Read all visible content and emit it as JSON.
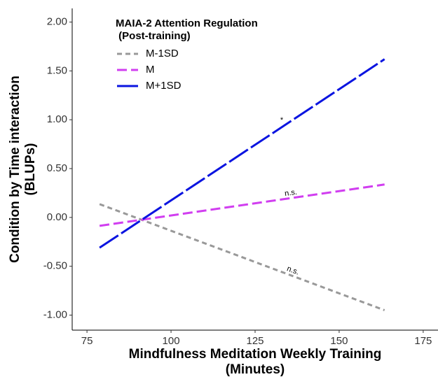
{
  "chart_data": {
    "type": "line",
    "legend_title": [
      "MAIA-2 Attention Regulation",
      " (Post-training)"
    ],
    "xlabel": [
      "Mindfulness Meditation Weekly Training",
      "(Minutes)"
    ],
    "ylabel": [
      "Condition by Time interaction",
      "(BLUPs)"
    ],
    "x": [
      78.75,
      163.5
    ],
    "series": [
      {
        "name": "M-1SD",
        "color": "#999999",
        "values": [
          0.136,
          -0.95
        ]
      },
      {
        "name": "M",
        "color": "#d13ef0",
        "values": [
          -0.086,
          0.337
        ]
      },
      {
        "name": "M+1SD",
        "color": "#0a14e0",
        "values": [
          -0.31,
          1.62
        ]
      }
    ],
    "annotations": [
      "n.s.",
      "n.s.",
      "*"
    ],
    "xlim": [
      70.6,
      179.4
    ],
    "ylim": [
      -1.154,
      2.14
    ],
    "xticks": [
      75,
      100,
      125,
      150,
      175
    ],
    "yticks": [
      {
        "value": -1,
        "label": "-1.00"
      },
      {
        "value": -0.5,
        "label": "-0.50"
      },
      {
        "value": 0,
        "label": "0.00"
      },
      {
        "value": 0.5,
        "label": "0.50"
      },
      {
        "value": 1,
        "label": "1.00"
      },
      {
        "value": 1.5,
        "label": "1.50"
      },
      {
        "value": 2,
        "label": "2.00"
      }
    ],
    "legend": "top-left",
    "grid": false
  }
}
